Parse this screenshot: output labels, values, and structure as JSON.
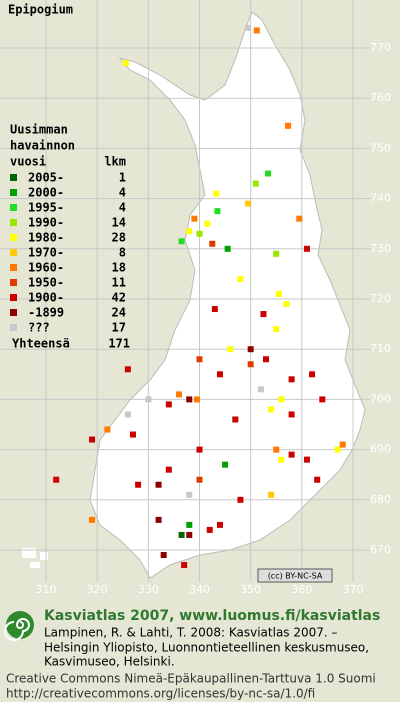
{
  "title": "Epipogium",
  "legend": {
    "header": [
      "Uusimman",
      "havainnon",
      "vuosi"
    ],
    "count_header": "lkm",
    "entries": [
      {
        "label": "2005-",
        "count": 1,
        "color": "#006400"
      },
      {
        "label": "2000-",
        "count": 4,
        "color": "#00a000"
      },
      {
        "label": "1995-",
        "count": 4,
        "color": "#22dd22"
      },
      {
        "label": "1990-",
        "count": 14,
        "color": "#99e600"
      },
      {
        "label": "1980-",
        "count": 28,
        "color": "#ffff00"
      },
      {
        "label": "1970-",
        "count": 8,
        "color": "#ffc800"
      },
      {
        "label": "1960-",
        "count": 18,
        "color": "#ff7800"
      },
      {
        "label": "1950-",
        "count": 11,
        "color": "#e03c00"
      },
      {
        "label": "1900-",
        "count": 42,
        "color": "#cc0000"
      },
      {
        "label": "-1899",
        "count": 24,
        "color": "#8c0000"
      },
      {
        "label": "???",
        "count": 17,
        "color": "#c8c8c8"
      }
    ],
    "total_label": "Yhteensä",
    "total": 171
  },
  "map": {
    "xticks": [
      310,
      320,
      330,
      340,
      350,
      360,
      370
    ],
    "yticks": [
      670,
      680,
      690,
      700,
      710,
      720,
      730,
      740,
      750,
      760,
      770
    ],
    "observations": [
      {
        "e": 349.5,
        "n": 774,
        "period": "???"
      },
      {
        "e": 351.2,
        "n": 773.5,
        "period": "1960-"
      },
      {
        "e": 325.6,
        "n": 767,
        "period": "1980-"
      },
      {
        "e": 357.3,
        "n": 754.5,
        "period": "1960-"
      },
      {
        "e": 353.4,
        "n": 745,
        "period": "1995-"
      },
      {
        "e": 351,
        "n": 743,
        "period": "1990-"
      },
      {
        "e": 343.3,
        "n": 741,
        "period": "1980-"
      },
      {
        "e": 349.5,
        "n": 739,
        "period": "1970-"
      },
      {
        "e": 343.5,
        "n": 737.5,
        "period": "1995-"
      },
      {
        "e": 339,
        "n": 736,
        "period": "1960-"
      },
      {
        "e": 341.5,
        "n": 735,
        "period": "1980-"
      },
      {
        "e": 338,
        "n": 733.5,
        "period": "1980-"
      },
      {
        "e": 340,
        "n": 733,
        "period": "1990-"
      },
      {
        "e": 336.5,
        "n": 731.5,
        "period": "1995-"
      },
      {
        "e": 342.5,
        "n": 731,
        "period": "1950-"
      },
      {
        "e": 345.5,
        "n": 730,
        "period": "2000-"
      },
      {
        "e": 359.5,
        "n": 736,
        "period": "1960-"
      },
      {
        "e": 361,
        "n": 730,
        "period": "1900-"
      },
      {
        "e": 355,
        "n": 729,
        "period": "1990-"
      },
      {
        "e": 348,
        "n": 724,
        "period": "1980-"
      },
      {
        "e": 355.5,
        "n": 721,
        "period": "1980-"
      },
      {
        "e": 357,
        "n": 719,
        "period": "1980-"
      },
      {
        "e": 352.5,
        "n": 717,
        "period": "1900-"
      },
      {
        "e": 343,
        "n": 718,
        "period": "1900-"
      },
      {
        "e": 355,
        "n": 714,
        "period": "1980-"
      },
      {
        "e": 346,
        "n": 710,
        "period": "1980-"
      },
      {
        "e": 350,
        "n": 710,
        "period": "-1899"
      },
      {
        "e": 353,
        "n": 708,
        "period": "1900-"
      },
      {
        "e": 340,
        "n": 708,
        "period": "1950-"
      },
      {
        "e": 344,
        "n": 705,
        "period": "1900-"
      },
      {
        "e": 352,
        "n": 702,
        "period": "???"
      },
      {
        "e": 358,
        "n": 704,
        "period": "1900-"
      },
      {
        "e": 362,
        "n": 705,
        "period": "1900-"
      },
      {
        "e": 364,
        "n": 700,
        "period": "1900-"
      },
      {
        "e": 356,
        "n": 700,
        "period": "1980-"
      },
      {
        "e": 354,
        "n": 698,
        "period": "1980-"
      },
      {
        "e": 358,
        "n": 697,
        "period": "1900-"
      },
      {
        "e": 347,
        "n": 696,
        "period": "1900-"
      },
      {
        "e": 338,
        "n": 700,
        "period": "-1899"
      },
      {
        "e": 334,
        "n": 699,
        "period": "1900-"
      },
      {
        "e": 336,
        "n": 701,
        "period": "1960-"
      },
      {
        "e": 326,
        "n": 697,
        "period": "???"
      },
      {
        "e": 322,
        "n": 694,
        "period": "1960-"
      },
      {
        "e": 319,
        "n": 692,
        "period": "1900-"
      },
      {
        "e": 327,
        "n": 693,
        "period": "1900-"
      },
      {
        "e": 355,
        "n": 690,
        "period": "1960-"
      },
      {
        "e": 356,
        "n": 688,
        "period": "1980-"
      },
      {
        "e": 358,
        "n": 689,
        "period": "1900-"
      },
      {
        "e": 367,
        "n": 690,
        "period": "1980-"
      },
      {
        "e": 361,
        "n": 688,
        "period": "1900-"
      },
      {
        "e": 340,
        "n": 690,
        "period": "1900-"
      },
      {
        "e": 345,
        "n": 687,
        "period": "2000-"
      },
      {
        "e": 334,
        "n": 686,
        "period": "1900-"
      },
      {
        "e": 332,
        "n": 683,
        "period": "-1899"
      },
      {
        "e": 338,
        "n": 681,
        "period": "???"
      },
      {
        "e": 328,
        "n": 683,
        "period": "1900-"
      },
      {
        "e": 340,
        "n": 684,
        "period": "1950-"
      },
      {
        "e": 348,
        "n": 680,
        "period": "1900-"
      },
      {
        "e": 363,
        "n": 684,
        "period": "1900-"
      },
      {
        "e": 332,
        "n": 676,
        "period": "-1899"
      },
      {
        "e": 342,
        "n": 674,
        "period": "1900-"
      },
      {
        "e": 336.5,
        "n": 673,
        "period": "2005-"
      },
      {
        "e": 338,
        "n": 673,
        "period": "-1899"
      },
      {
        "e": 333,
        "n": 669,
        "period": "-1899"
      },
      {
        "e": 337,
        "n": 667,
        "period": "1900-"
      },
      {
        "e": 319,
        "n": 676,
        "period": "1960-"
      },
      {
        "e": 312,
        "n": 684,
        "period": "1900-"
      },
      {
        "e": 338,
        "n": 675,
        "period": "2000-"
      },
      {
        "e": 344,
        "n": 675,
        "period": "1900-"
      },
      {
        "e": 354,
        "n": 681,
        "period": "1970-"
      },
      {
        "e": 368,
        "n": 691,
        "period": "1960-"
      },
      {
        "e": 326,
        "n": 706,
        "period": "1900-"
      },
      {
        "e": 330,
        "n": 700,
        "period": "???"
      },
      {
        "e": 339.5,
        "n": 700,
        "period": "1960-"
      },
      {
        "e": 350,
        "n": 707,
        "period": "1950-"
      }
    ]
  },
  "badge": "(cc) BY-NC-SA",
  "footer": {
    "site": "Kasviatlas 2007, www.luomus.fi/kasviatlas",
    "reference": [
      "Lampinen, R. & Lahti, T. 2008: Kasviatlas 2007. –",
      "Helsingin Yliopisto, Luonnontieteellinen keskusmuseo,",
      "Kasvimuseo, Helsinki."
    ],
    "license": [
      "Creative Commons Nimeä-Epäkaupallinen-Tarttuva 1.0 Suomi",
      "http://creativecommons.org/licenses/by-nc-sa/1.0/fi"
    ]
  }
}
